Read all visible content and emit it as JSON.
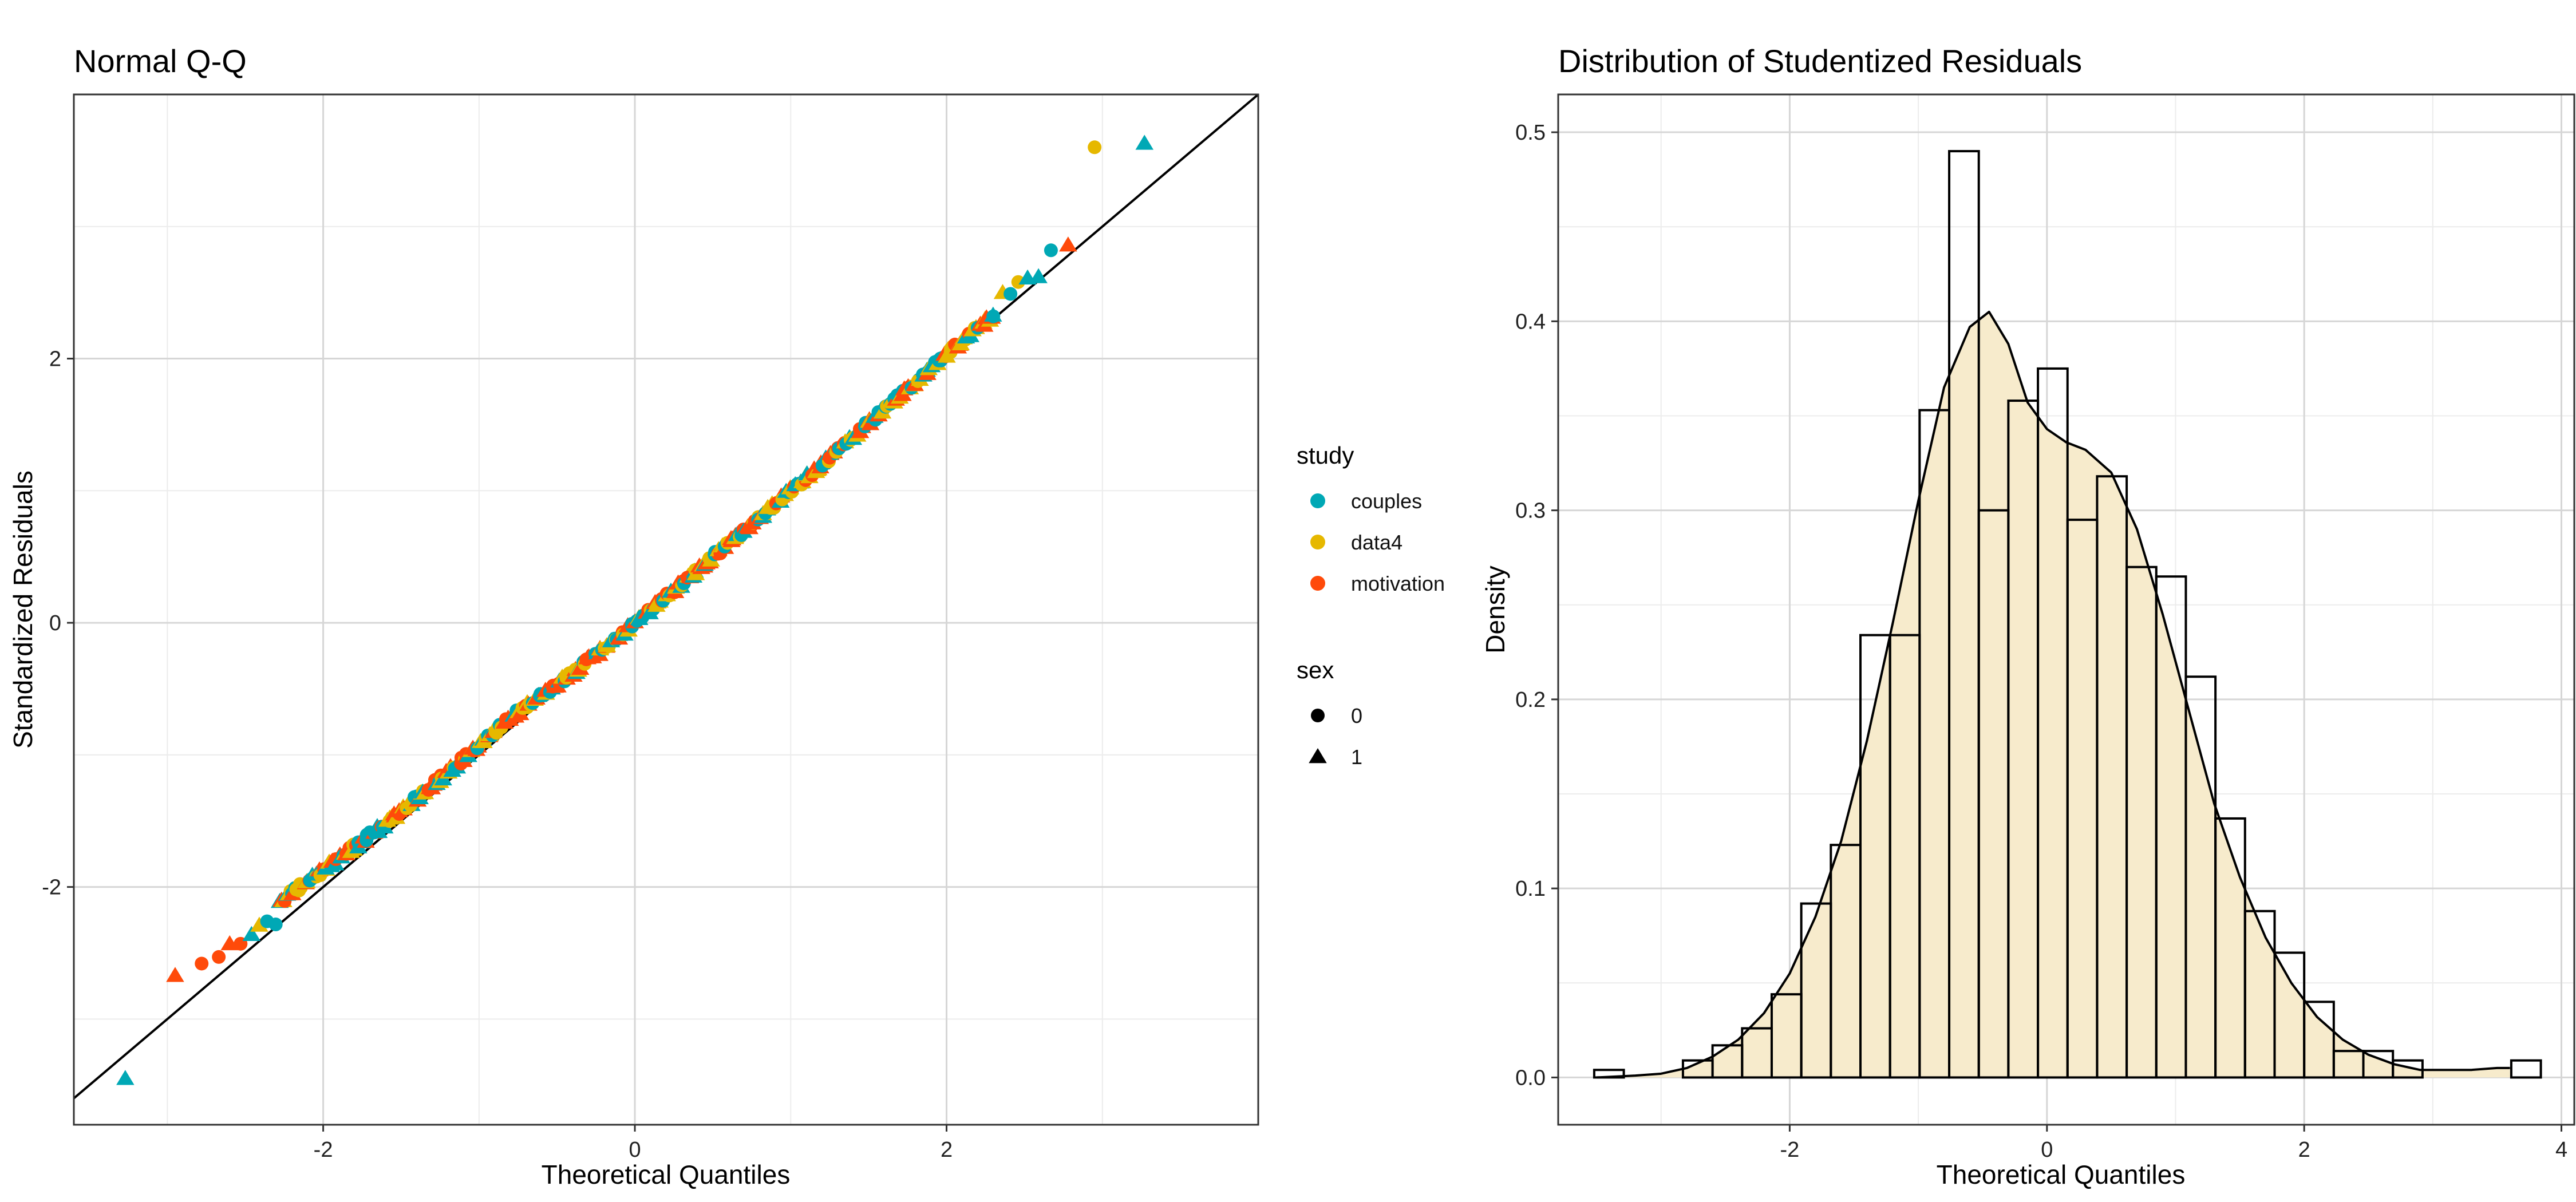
{
  "chart_data": [
    {
      "type": "scatter",
      "title": "Normal Q-Q",
      "xlabel": "Theoretical Quantiles",
      "ylabel": "Standardized Residuals",
      "xlim": [
        -3.6,
        4.0
      ],
      "ylim": [
        -3.8,
        4.0
      ],
      "x_ticks": [
        -2,
        0,
        2
      ],
      "y_ticks": [
        -2,
        0,
        2
      ],
      "x_tick_labels": [
        "-2",
        "0",
        "2"
      ],
      "y_tick_labels": [
        "-2",
        "0",
        "2"
      ],
      "grid": true,
      "reference_line": {
        "intercept": 0.0,
        "slope": 1.0
      },
      "legend": {
        "placement": "right",
        "color_title": "study",
        "color_items": [
          {
            "label": "couples",
            "color": "#00A8B5"
          },
          {
            "label": "data4",
            "color": "#E6B800"
          },
          {
            "label": "motivation",
            "color": "#FF4A0A"
          }
        ],
        "shape_title": "sex",
        "shape_items": [
          {
            "label": "0",
            "shape": "circle"
          },
          {
            "label": "1",
            "shape": "triangle"
          }
        ]
      },
      "outliers": [
        {
          "x": -3.27,
          "y": -3.45,
          "study": "couples",
          "sex": "1"
        },
        {
          "x": -2.95,
          "y": -2.67,
          "study": "motivation",
          "sex": "1"
        },
        {
          "x": -2.78,
          "y": -2.58,
          "study": "motivation",
          "sex": "0"
        },
        {
          "x": -2.67,
          "y": -2.53,
          "study": "motivation",
          "sex": "0"
        },
        {
          "x": -2.6,
          "y": -2.43,
          "study": "motivation",
          "sex": "1"
        },
        {
          "x": -2.53,
          "y": -2.43,
          "study": "motivation",
          "sex": "0"
        },
        {
          "x": -2.46,
          "y": -2.36,
          "study": "couples",
          "sex": "1"
        },
        {
          "x": -2.41,
          "y": -2.29,
          "study": "data4",
          "sex": "1"
        },
        {
          "x": -2.36,
          "y": -2.26,
          "study": "couples",
          "sex": "0"
        },
        {
          "x": 2.3,
          "y": 2.32,
          "study": "couples",
          "sex": "0"
        },
        {
          "x": 2.36,
          "y": 2.5,
          "study": "data4",
          "sex": "1"
        },
        {
          "x": 2.41,
          "y": 2.49,
          "study": "couples",
          "sex": "0"
        },
        {
          "x": 2.46,
          "y": 2.58,
          "study": "data4",
          "sex": "0"
        },
        {
          "x": 2.52,
          "y": 2.61,
          "study": "couples",
          "sex": "1"
        },
        {
          "x": 2.59,
          "y": 2.62,
          "study": "couples",
          "sex": "1"
        },
        {
          "x": 2.67,
          "y": 2.82,
          "study": "couples",
          "sex": "0"
        },
        {
          "x": 2.78,
          "y": 2.86,
          "study": "motivation",
          "sex": "1"
        },
        {
          "x": 2.95,
          "y": 3.6,
          "study": "data4",
          "sex": "0"
        },
        {
          "x": 3.27,
          "y": 3.63,
          "study": "couples",
          "sex": "1"
        }
      ],
      "bulk": {
        "x_range": [
          -2.3,
          2.3
        ],
        "description": "points follow the line closely; slightly above line for x < -1.2",
        "profile": [
          [
            -2.3,
            -2.13
          ],
          [
            -2.0,
            -1.87
          ],
          [
            -1.6,
            -1.52
          ],
          [
            -1.2,
            -1.13
          ],
          [
            -0.8,
            -0.72
          ],
          [
            -0.4,
            -0.38
          ],
          [
            0.0,
            0.0
          ],
          [
            0.4,
            0.4
          ],
          [
            0.8,
            0.8
          ],
          [
            1.2,
            1.2
          ],
          [
            1.6,
            1.62
          ],
          [
            2.0,
            2.03
          ],
          [
            2.3,
            2.33
          ]
        ]
      }
    },
    {
      "type": "bar",
      "subtype": "histogram_with_density",
      "title": "Distribution of Studentized Residuals",
      "xlabel": "Theoretical Quantiles",
      "ylabel": "Density",
      "xlim": [
        -3.8,
        4.1
      ],
      "ylim": [
        -0.025,
        0.52
      ],
      "x_ticks": [
        -2,
        0,
        2,
        4
      ],
      "y_ticks": [
        0.0,
        0.1,
        0.2,
        0.3,
        0.4,
        0.5
      ],
      "x_tick_labels": [
        "-2",
        "0",
        "2",
        "4"
      ],
      "y_tick_labels": [
        "0.0",
        "0.1",
        "0.2",
        "0.3",
        "0.4",
        "0.5"
      ],
      "grid": true,
      "bin_width": 0.23,
      "bins": [
        {
          "x0": -3.52,
          "density": 0.004
        },
        {
          "x0": -2.83,
          "density": 0.009
        },
        {
          "x0": -2.6,
          "density": 0.017
        },
        {
          "x0": -2.37,
          "density": 0.026
        },
        {
          "x0": -2.14,
          "density": 0.044
        },
        {
          "x0": -1.91,
          "density": 0.092
        },
        {
          "x0": -1.68,
          "density": 0.123
        },
        {
          "x0": -1.45,
          "density": 0.234
        },
        {
          "x0": -1.22,
          "density": 0.234
        },
        {
          "x0": -0.99,
          "density": 0.353
        },
        {
          "x0": -0.76,
          "density": 0.49
        },
        {
          "x0": -0.53,
          "density": 0.3
        },
        {
          "x0": -0.3,
          "density": 0.358
        },
        {
          "x0": -0.07,
          "density": 0.375
        },
        {
          "x0": 0.16,
          "density": 0.295
        },
        {
          "x0": 0.39,
          "density": 0.318
        },
        {
          "x0": 0.62,
          "density": 0.27
        },
        {
          "x0": 0.85,
          "density": 0.265
        },
        {
          "x0": 1.08,
          "density": 0.212
        },
        {
          "x0": 1.31,
          "density": 0.137
        },
        {
          "x0": 1.54,
          "density": 0.088
        },
        {
          "x0": 1.77,
          "density": 0.066
        },
        {
          "x0": 2.0,
          "density": 0.04
        },
        {
          "x0": 2.23,
          "density": 0.014
        },
        {
          "x0": 2.46,
          "density": 0.014
        },
        {
          "x0": 2.69,
          "density": 0.009
        },
        {
          "x0": 3.61,
          "density": 0.009
        }
      ],
      "density_curve": {
        "x": [
          -3.5,
          -3.2,
          -3.0,
          -2.8,
          -2.6,
          -2.4,
          -2.2,
          -2.0,
          -1.8,
          -1.6,
          -1.4,
          -1.2,
          -1.0,
          -0.8,
          -0.6,
          -0.45,
          -0.3,
          -0.15,
          0.0,
          0.15,
          0.3,
          0.5,
          0.7,
          0.9,
          1.1,
          1.3,
          1.5,
          1.7,
          1.9,
          2.1,
          2.3,
          2.5,
          2.7,
          2.9,
          3.1,
          3.3,
          3.5,
          3.6
        ],
        "y": [
          0.0,
          0.001,
          0.002,
          0.005,
          0.011,
          0.02,
          0.034,
          0.055,
          0.085,
          0.125,
          0.178,
          0.24,
          0.305,
          0.365,
          0.397,
          0.405,
          0.388,
          0.357,
          0.343,
          0.336,
          0.332,
          0.32,
          0.29,
          0.245,
          0.195,
          0.145,
          0.106,
          0.074,
          0.05,
          0.032,
          0.02,
          0.012,
          0.007,
          0.004,
          0.004,
          0.004,
          0.005,
          0.005
        ],
        "fill": "#F7EBCC",
        "stroke": "#000000"
      }
    }
  ]
}
